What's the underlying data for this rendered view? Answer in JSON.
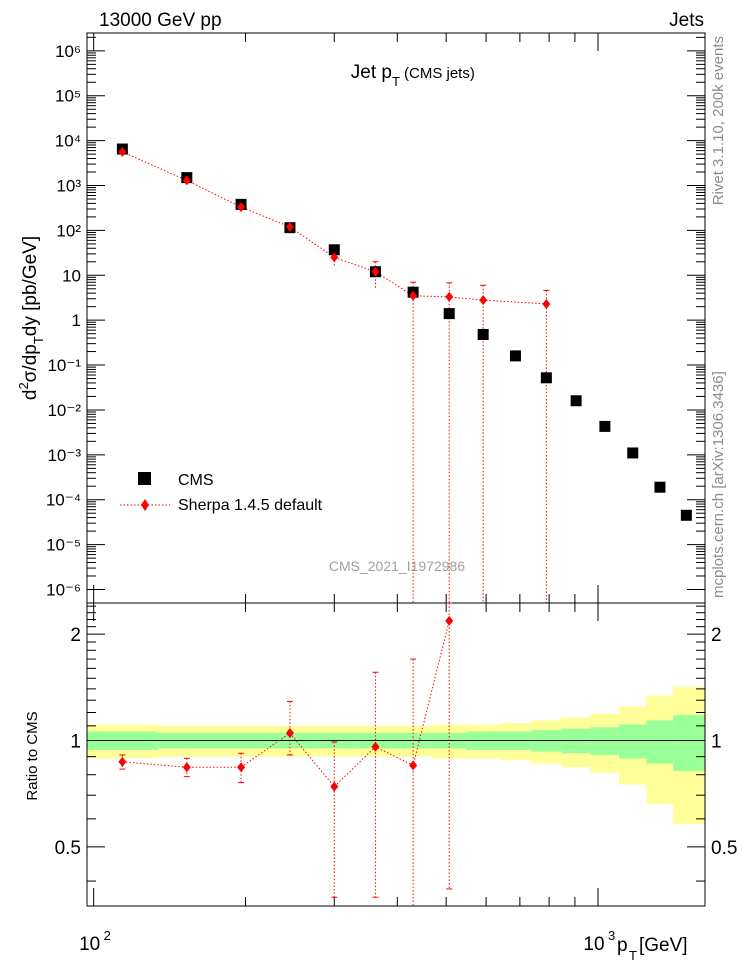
{
  "header": {
    "left": "13000 GeV pp",
    "right": "Jets"
  },
  "side_labels": {
    "rivet": "Rivet 3.1.10,  200k events",
    "mcplots": "mcplots.cern.ch [arXiv:1306.3436]"
  },
  "colors": {
    "data": "#000000",
    "mc": "#ff0000",
    "band_inner": "#99ff99",
    "band_outer": "#ffff99"
  },
  "chart_data": [
    {
      "type": "scatter",
      "title": "Jet p",
      "title_sub": "T",
      "title_extra": "(CMS jets)",
      "watermark": "CMS_2021_I1972986",
      "ylabel": "d²σ/dp_T dy [pb/GeV]",
      "ylabel_parts": [
        "d",
        "2",
        "σ/dp",
        "T",
        "dy [pb/GeV]"
      ],
      "xscale": "log",
      "yscale": "log",
      "xlim": [
        97,
        1630
      ],
      "ylim": [
        5e-07,
        2500000.0
      ],
      "y_tick_labels": [
        "10⁻⁶",
        "10⁻⁵",
        "10⁻⁴",
        "10⁻³",
        "10⁻²",
        "10⁻¹",
        "1",
        "10",
        "10²",
        "10³",
        "10⁴",
        "10⁵",
        "10⁶"
      ],
      "legend_position": "bottom-left",
      "series": [
        {
          "name": "CMS",
          "marker": "square",
          "x": [
            114,
            153,
            196,
            245,
            300,
            362,
            430,
            507,
            592,
            686,
            790,
            905,
            1032,
            1172,
            1327,
            1497
          ],
          "y": [
            6500,
            1500,
            380,
            115,
            37,
            12,
            4.2,
            1.4,
            0.48,
            0.16,
            0.052,
            0.016,
            0.0043,
            0.0011,
            0.00019,
            4.5e-05
          ]
        },
        {
          "name": "Sherpa 1.4.5 default",
          "marker": "diamond",
          "x": [
            114,
            153,
            196,
            245,
            300,
            362,
            430,
            507,
            592,
            790
          ],
          "y": [
            5600,
            1300,
            330,
            120,
            25,
            12,
            3.5,
            3.3,
            2.8,
            2.3
          ],
          "y_err_low": [
            300,
            100,
            50,
            20,
            10,
            7,
            3.5,
            3.3,
            2.8,
            2.3
          ],
          "y_err_high": [
            300,
            100,
            50,
            25,
            12,
            8,
            3.5,
            3.5,
            3.2,
            2.3
          ]
        }
      ]
    },
    {
      "type": "scatter",
      "ylabel": "Ratio to CMS",
      "xlabel": "p_T [GeV]",
      "xlabel_parts": [
        "p",
        "T",
        " [GeV]"
      ],
      "xscale": "log",
      "yscale": "log",
      "xlim": [
        97,
        1630
      ],
      "ylim": [
        0.34,
        2.45
      ],
      "y_ticks": [
        0.5,
        1,
        2
      ],
      "y_tick_labels": [
        "0.5",
        "1",
        "2"
      ],
      "x_ticks": [
        100,
        1000
      ],
      "x_tick_labels": [
        "10",
        "10"
      ],
      "x_tick_exponents": [
        "2",
        "3"
      ],
      "bands": {
        "edges": [
          97,
          134,
          174,
          220,
          272,
          330,
          395,
          468,
          548,
          638,
          737,
          846,
          966,
          1101,
          1248,
          1410,
          1630
        ],
        "inner_low": [
          0.94,
          0.95,
          0.95,
          0.95,
          0.95,
          0.95,
          0.95,
          0.95,
          0.94,
          0.94,
          0.93,
          0.92,
          0.91,
          0.89,
          0.86,
          0.82
        ],
        "inner_high": [
          1.06,
          1.05,
          1.05,
          1.05,
          1.05,
          1.05,
          1.05,
          1.05,
          1.06,
          1.06,
          1.07,
          1.08,
          1.09,
          1.11,
          1.14,
          1.18
        ],
        "outer_low": [
          0.89,
          0.9,
          0.9,
          0.9,
          0.9,
          0.9,
          0.9,
          0.89,
          0.89,
          0.88,
          0.86,
          0.84,
          0.81,
          0.75,
          0.66,
          0.58
        ],
        "outer_high": [
          1.11,
          1.1,
          1.1,
          1.1,
          1.1,
          1.1,
          1.1,
          1.11,
          1.11,
          1.12,
          1.14,
          1.16,
          1.19,
          1.25,
          1.34,
          1.42
        ]
      },
      "series": [
        {
          "name": "Sherpa 1.4.5 default",
          "marker": "diamond",
          "x": [
            114,
            153,
            196,
            245,
            300,
            362,
            430,
            507
          ],
          "y": [
            0.87,
            0.84,
            0.84,
            1.05,
            0.74,
            0.96,
            0.85,
            2.18
          ],
          "y_err_low": [
            0.04,
            0.05,
            0.08,
            0.14,
            0.38,
            0.6,
            0.55,
            1.8
          ],
          "y_err_high": [
            0.04,
            0.05,
            0.08,
            0.24,
            0.25,
            0.6,
            0.85,
            0.3
          ]
        }
      ]
    }
  ]
}
